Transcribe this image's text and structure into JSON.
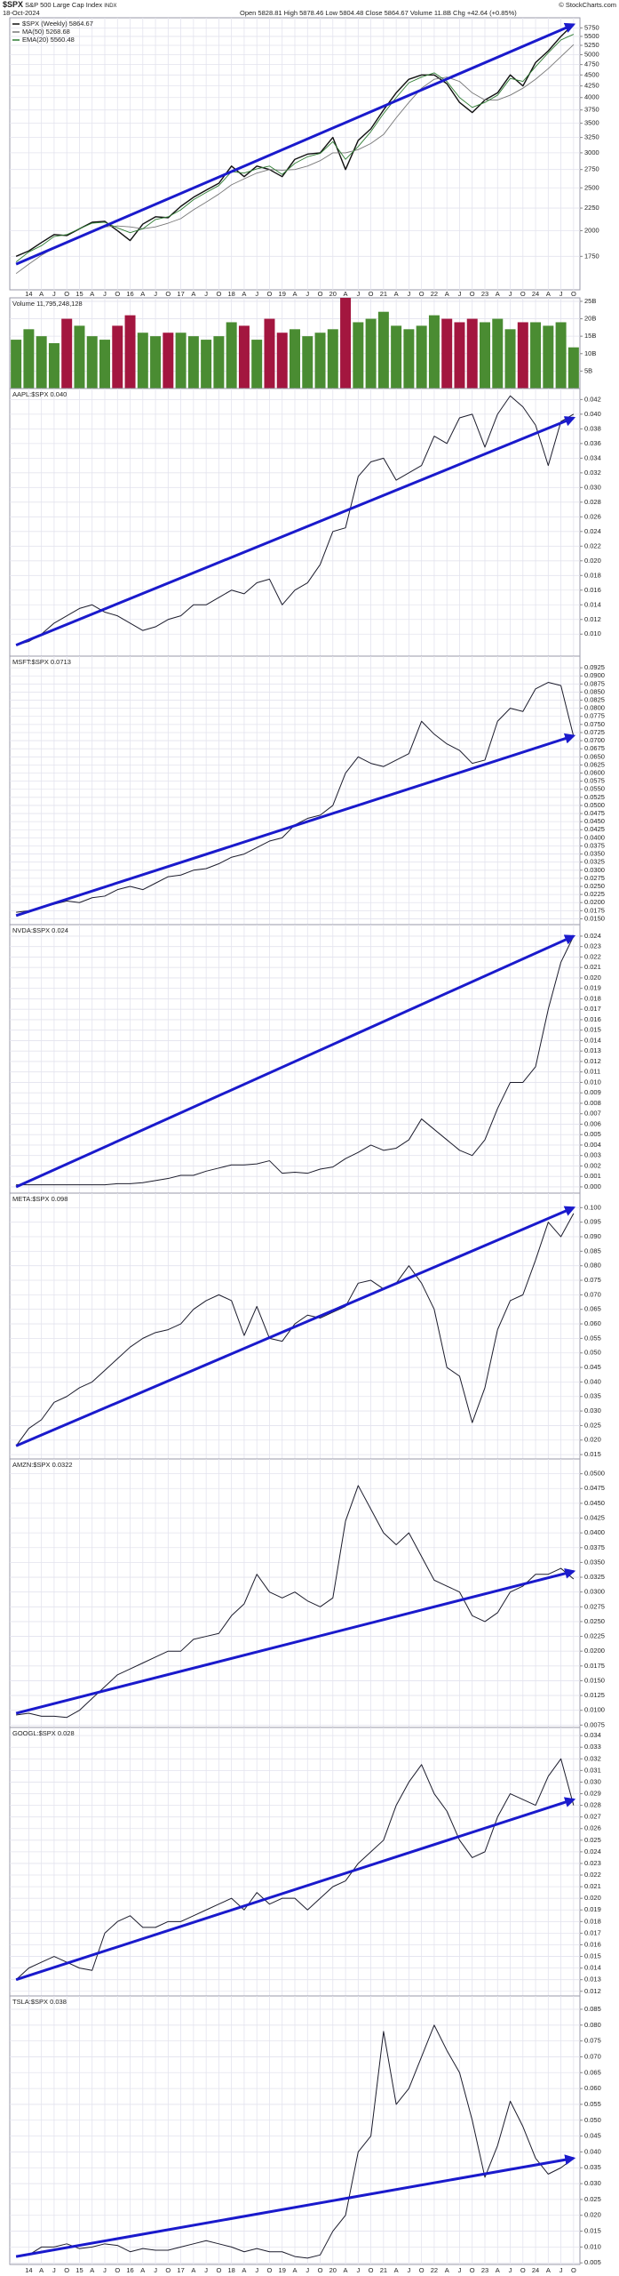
{
  "header": {
    "symbol": "$SPX",
    "name": "S&P 500 Large Cap Index",
    "exchange": "INDX",
    "date": "18-Oct-2024",
    "quote": "Open 5828.81 High 5878.46 Low 5804.48 Close 5864.67 Volume 11.8B Chg +42.64 (+0.85%)",
    "copyright": "© StockCharts.com"
  },
  "chart_data": [
    {
      "type": "line",
      "log": true,
      "grid": true,
      "categories": [
        null,
        "14",
        "A",
        "J",
        "O",
        "15",
        "A",
        "J",
        "O",
        "16",
        "A",
        "J",
        "O",
        "17",
        "A",
        "J",
        "O",
        "18",
        "A",
        "J",
        "O",
        "19",
        "A",
        "J",
        "O",
        "20",
        "A",
        "J",
        "O",
        "21",
        "A",
        "J",
        "O",
        "22",
        "A",
        "J",
        "O",
        "23",
        "A",
        "J",
        "O",
        "24",
        "A",
        "J",
        "O"
      ],
      "series": [
        {
          "name": "$SPX (Weekly) 5864.67",
          "color": "#111111",
          "width": 1.4,
          "values": [
            1750,
            1800,
            1880,
            1960,
            1950,
            2020,
            2090,
            2100,
            2000,
            1900,
            2070,
            2150,
            2140,
            2270,
            2380,
            2470,
            2560,
            2800,
            2650,
            2800,
            2750,
            2650,
            2900,
            2980,
            3000,
            3250,
            2750,
            3200,
            3400,
            3750,
            4100,
            4400,
            4500,
            4500,
            4300,
            3900,
            3700,
            3950,
            4100,
            4500,
            4250,
            4800,
            5100,
            5500,
            5864.67
          ]
        },
        {
          "name": "MA(50) 5268.68",
          "color": "#777777",
          "width": 0.9,
          "values": [
            1600,
            1680,
            1760,
            1830,
            1880,
            1940,
            1990,
            2040,
            2050,
            2040,
            2020,
            2040,
            2080,
            2130,
            2230,
            2320,
            2420,
            2540,
            2620,
            2700,
            2750,
            2740,
            2750,
            2800,
            2880,
            3000,
            3000,
            3050,
            3150,
            3300,
            3600,
            3900,
            4200,
            4400,
            4450,
            4350,
            4100,
            3950,
            3950,
            4050,
            4200,
            4400,
            4650,
            4950,
            5268.68
          ]
        },
        {
          "name": "EMA(20) 5560.48",
          "color": "#2e7d32",
          "width": 0.9,
          "values": [
            1700,
            1790,
            1850,
            1940,
            1960,
            2020,
            2080,
            2090,
            2030,
            1980,
            2020,
            2120,
            2150,
            2230,
            2350,
            2440,
            2530,
            2720,
            2700,
            2760,
            2800,
            2680,
            2840,
            2940,
            2990,
            3180,
            2900,
            3100,
            3350,
            3680,
            4000,
            4320,
            4450,
            4550,
            4350,
            4000,
            3800,
            3900,
            4050,
            4420,
            4350,
            4700,
            5050,
            5400,
            5560.48
          ]
        }
      ],
      "ylim": [
        1470,
        6060
      ],
      "yticks": [
        1750,
        2000,
        2250,
        2500,
        2750,
        3000,
        3250,
        3500,
        3750,
        4000,
        4250,
        4500,
        4750,
        5000,
        5250,
        5500,
        5750
      ],
      "trendline": {
        "start": 1680,
        "end": 5850,
        "color": "#1a1acc"
      }
    },
    {
      "type": "bar",
      "grid": true,
      "up_color": "#4a8c32",
      "down_color": "#a3163f",
      "series": [
        {
          "name": "Volume 11,795,248,128",
          "values": [
            14,
            17,
            15,
            13,
            20,
            18,
            15,
            14,
            18,
            21,
            16,
            15,
            16,
            16,
            15,
            14,
            15,
            19,
            18,
            14,
            20,
            16,
            17,
            15,
            16,
            17,
            26,
            19,
            20,
            22,
            18,
            17,
            18,
            21,
            20,
            19,
            20,
            19,
            20,
            17,
            19,
            19,
            18,
            19,
            11.8
          ]
        }
      ],
      "ylim": [
        0,
        26
      ],
      "yticks": [
        {
          "value": 5,
          "label": "5B"
        },
        {
          "value": 10,
          "label": "10B"
        },
        {
          "value": 15,
          "label": "15B"
        },
        {
          "value": 20,
          "label": "20B"
        },
        {
          "value": 25,
          "label": "25B"
        }
      ]
    },
    {
      "type": "line",
      "grid": true,
      "series": [
        {
          "name": "AAPL:$SPX 0.040",
          "color": "#1c1c2c",
          "width": 1,
          "values": [
            0.0085,
            0.009,
            0.01,
            0.0115,
            0.0125,
            0.0135,
            0.014,
            0.013,
            0.0125,
            0.0115,
            0.0105,
            0.011,
            0.012,
            0.0125,
            0.014,
            0.014,
            0.015,
            0.016,
            0.0155,
            0.017,
            0.0175,
            0.014,
            0.016,
            0.017,
            0.0195,
            0.024,
            0.0245,
            0.0315,
            0.0335,
            0.034,
            0.031,
            0.032,
            0.033,
            0.037,
            0.036,
            0.0395,
            0.04,
            0.0355,
            0.04,
            0.0425,
            0.041,
            0.0385,
            0.033,
            0.039,
            0.04
          ]
        }
      ],
      "ylim": [
        0.007,
        0.0435
      ],
      "yticks": [
        {
          "value": 0.01,
          "label": "0.010"
        },
        0.012,
        0.014,
        0.016,
        0.018,
        {
          "value": 0.02,
          "label": "0.020"
        },
        0.022,
        0.024,
        0.026,
        0.028,
        {
          "value": 0.03,
          "label": "0.030"
        },
        0.032,
        0.034,
        0.036,
        0.038,
        {
          "value": 0.04,
          "label": "0.040"
        },
        0.042
      ],
      "trendline": {
        "start": 0.0085,
        "end": 0.0395,
        "color": "#1a1acc"
      }
    },
    {
      "type": "line",
      "grid": true,
      "series": [
        {
          "name": "MSFT:$SPX 0.0713",
          "color": "#1c1c2c",
          "width": 1,
          "values": [
            0.017,
            0.0175,
            0.0185,
            0.0195,
            0.0205,
            0.02,
            0.0215,
            0.022,
            0.024,
            0.025,
            0.024,
            0.026,
            0.028,
            0.0285,
            0.03,
            0.0305,
            0.032,
            0.034,
            0.035,
            0.037,
            0.039,
            0.04,
            0.044,
            0.046,
            0.047,
            0.05,
            0.06,
            0.065,
            0.063,
            0.062,
            0.064,
            0.066,
            0.076,
            0.072,
            0.069,
            0.067,
            0.063,
            0.064,
            0.076,
            0.08,
            0.079,
            0.086,
            0.088,
            0.087,
            0.0713
          ]
        }
      ],
      "ylim": [
        0.0132,
        0.0961
      ],
      "yticks": [
        {
          "value": 0.015,
          "label": "0.0150"
        },
        0.0175,
        {
          "value": 0.02,
          "label": "0.0200"
        },
        0.0225,
        {
          "value": 0.025,
          "label": "0.0250"
        },
        0.0275,
        {
          "value": 0.03,
          "label": "0.0300"
        },
        0.0325,
        {
          "value": 0.035,
          "label": "0.0350"
        },
        0.0375,
        {
          "value": 0.04,
          "label": "0.0400"
        },
        0.0425,
        {
          "value": 0.045,
          "label": "0.0450"
        },
        0.0475,
        {
          "value": 0.05,
          "label": "0.0500"
        },
        0.0525,
        {
          "value": 0.055,
          "label": "0.0550"
        },
        0.0575,
        {
          "value": 0.06,
          "label": "0.0600"
        },
        0.0625,
        {
          "value": 0.065,
          "label": "0.0650"
        },
        0.0675,
        {
          "value": 0.07,
          "label": "0.0700"
        },
        0.0725,
        {
          "value": 0.075,
          "label": "0.0750"
        },
        0.0775,
        {
          "value": 0.08,
          "label": "0.0800"
        },
        0.0825,
        {
          "value": 0.085,
          "label": "0.0850"
        },
        0.0875,
        {
          "value": 0.09,
          "label": "0.0900"
        },
        0.0925
      ],
      "trendline": {
        "start": 0.016,
        "end": 0.0715,
        "color": "#1a1acc"
      }
    },
    {
      "type": "line",
      "grid": true,
      "series": [
        {
          "name": "NVDA:$SPX 0.024",
          "color": "#1c1c2c",
          "width": 1,
          "values": [
            0.0002,
            0.0002,
            0.0002,
            0.0002,
            0.0002,
            0.0002,
            0.0002,
            0.0002,
            0.0003,
            0.0003,
            0.0004,
            0.0006,
            0.0008,
            0.0011,
            0.0011,
            0.0015,
            0.0018,
            0.0021,
            0.0021,
            0.0022,
            0.0025,
            0.0013,
            0.0014,
            0.0013,
            0.0017,
            0.0019,
            0.0027,
            0.0033,
            0.004,
            0.0035,
            0.0037,
            0.0045,
            0.0065,
            0.0055,
            0.0045,
            0.0035,
            0.003,
            0.0045,
            0.0075,
            0.01,
            0.01,
            0.0115,
            0.017,
            0.0215,
            0.024
          ]
        }
      ],
      "ylim": [
        -0.0006,
        0.0251
      ],
      "yticks": [
        {
          "value": 0,
          "label": "0.000"
        },
        0.001,
        0.002,
        0.003,
        0.004,
        0.005,
        0.006,
        0.007,
        0.008,
        0.009,
        {
          "value": 0.01,
          "label": "0.010"
        },
        0.011,
        0.012,
        0.013,
        0.014,
        0.015,
        0.016,
        0.017,
        0.018,
        0.019,
        {
          "value": 0.02,
          "label": "0.020"
        },
        0.021,
        0.022,
        0.023,
        0.024
      ],
      "trendline": {
        "start": 0,
        "end": 0.024,
        "color": "#1a1acc"
      }
    },
    {
      "type": "line",
      "grid": true,
      "series": [
        {
          "name": "META:$SPX 0.098",
          "color": "#1c1c2c",
          "width": 1,
          "values": [
            0.018,
            0.024,
            0.027,
            0.033,
            0.035,
            0.038,
            0.04,
            0.044,
            0.048,
            0.052,
            0.055,
            0.057,
            0.058,
            0.06,
            0.065,
            0.068,
            0.07,
            0.068,
            0.056,
            0.066,
            0.055,
            0.054,
            0.06,
            0.063,
            0.062,
            0.064,
            0.066,
            0.074,
            0.075,
            0.072,
            0.074,
            0.08,
            0.074,
            0.065,
            0.045,
            0.042,
            0.026,
            0.038,
            0.058,
            0.068,
            0.07,
            0.082,
            0.095,
            0.09,
            0.098
          ]
        }
      ],
      "ylim": [
        0.0135,
        0.105
      ],
      "yticks": [
        0.015,
        {
          "value": 0.02,
          "label": "0.020"
        },
        0.025,
        {
          "value": 0.03,
          "label": "0.030"
        },
        0.035,
        {
          "value": 0.04,
          "label": "0.040"
        },
        0.045,
        {
          "value": 0.05,
          "label": "0.050"
        },
        0.055,
        {
          "value": 0.06,
          "label": "0.060"
        },
        0.065,
        {
          "value": 0.07,
          "label": "0.070"
        },
        0.075,
        {
          "value": 0.08,
          "label": "0.080"
        },
        0.085,
        {
          "value": 0.09,
          "label": "0.090"
        },
        0.095,
        {
          "value": 0.1,
          "label": "0.100"
        }
      ],
      "trendline": {
        "start": 0.018,
        "end": 0.1,
        "color": "#1a1acc"
      }
    },
    {
      "type": "line",
      "grid": true,
      "series": [
        {
          "name": "AMZN:$SPX 0.0322",
          "color": "#1c1c2c",
          "width": 1,
          "values": [
            0.0092,
            0.0095,
            0.009,
            0.009,
            0.0088,
            0.01,
            0.012,
            0.014,
            0.016,
            0.017,
            0.018,
            0.019,
            0.02,
            0.02,
            0.022,
            0.0225,
            0.023,
            0.026,
            0.028,
            0.033,
            0.03,
            0.029,
            0.03,
            0.0285,
            0.0275,
            0.029,
            0.042,
            0.048,
            0.044,
            0.04,
            0.038,
            0.04,
            0.036,
            0.032,
            0.031,
            0.03,
            0.026,
            0.025,
            0.0265,
            0.03,
            0.031,
            0.033,
            0.033,
            0.034,
            0.0322
          ]
        }
      ],
      "ylim": [
        0.0071,
        0.0525
      ],
      "yticks": [
        0.0075,
        {
          "value": 0.01,
          "label": "0.0100"
        },
        0.0125,
        {
          "value": 0.015,
          "label": "0.0150"
        },
        0.0175,
        {
          "value": 0.02,
          "label": "0.0200"
        },
        0.0225,
        {
          "value": 0.025,
          "label": "0.0250"
        },
        0.0275,
        {
          "value": 0.03,
          "label": "0.0300"
        },
        0.0325,
        {
          "value": 0.035,
          "label": "0.0350"
        },
        0.0375,
        {
          "value": 0.04,
          "label": "0.0400"
        },
        0.0425,
        {
          "value": 0.045,
          "label": "0.0450"
        },
        0.0475,
        {
          "value": 0.05,
          "label": "0.0500"
        }
      ],
      "trendline": {
        "start": 0.0095,
        "end": 0.0335,
        "color": "#1a1acc"
      }
    },
    {
      "type": "line",
      "grid": true,
      "series": [
        {
          "name": "GOOGL:$SPX 0.028",
          "color": "#1c1c2c",
          "width": 1,
          "values": [
            0.013,
            0.014,
            0.0145,
            0.015,
            0.0145,
            0.014,
            0.0138,
            0.017,
            0.018,
            0.0185,
            0.0175,
            0.0175,
            0.018,
            0.018,
            0.0185,
            0.019,
            0.0195,
            0.02,
            0.019,
            0.0205,
            0.0195,
            0.02,
            0.02,
            0.019,
            0.02,
            0.021,
            0.0215,
            0.023,
            0.024,
            0.025,
            0.028,
            0.03,
            0.0315,
            0.029,
            0.0275,
            0.025,
            0.0235,
            0.024,
            0.027,
            0.029,
            0.0285,
            0.028,
            0.0305,
            0.032,
            0.028
          ]
        }
      ],
      "ylim": [
        0.0116,
        0.0347
      ],
      "yticks": [
        0.012,
        0.013,
        0.014,
        0.015,
        0.016,
        0.017,
        0.018,
        0.019,
        {
          "value": 0.02,
          "label": "0.020"
        },
        0.021,
        0.022,
        0.023,
        0.024,
        0.025,
        0.026,
        0.027,
        0.028,
        0.029,
        {
          "value": 0.03,
          "label": "0.030"
        },
        0.031,
        0.032,
        0.033,
        0.034
      ],
      "trendline": {
        "start": 0.013,
        "end": 0.0285,
        "color": "#1a1acc"
      }
    },
    {
      "type": "line",
      "grid": true,
      "series": [
        {
          "name": "TSLA:$SPX 0.038",
          "color": "#1c1c2c",
          "width": 1,
          "values": [
            0.007,
            0.0075,
            0.01,
            0.01,
            0.011,
            0.0095,
            0.01,
            0.011,
            0.0105,
            0.0085,
            0.0095,
            0.009,
            0.009,
            0.01,
            0.011,
            0.012,
            0.011,
            0.01,
            0.0085,
            0.0095,
            0.0085,
            0.0085,
            0.007,
            0.0065,
            0.0075,
            0.015,
            0.02,
            0.04,
            0.045,
            0.078,
            0.055,
            0.06,
            0.07,
            0.08,
            0.072,
            0.065,
            0.05,
            0.032,
            0.042,
            0.056,
            0.048,
            0.038,
            0.033,
            0.035,
            0.038
          ]
        }
      ],
      "ylim": [
        0.0045,
        0.0892
      ],
      "yticks": [
        0.005,
        {
          "value": 0.01,
          "label": "0.010"
        },
        0.015,
        {
          "value": 0.02,
          "label": "0.020"
        },
        0.025,
        {
          "value": 0.03,
          "label": "0.030"
        },
        0.035,
        {
          "value": 0.04,
          "label": "0.040"
        },
        0.045,
        {
          "value": 0.05,
          "label": "0.050"
        },
        0.055,
        {
          "value": 0.06,
          "label": "0.060"
        },
        0.065,
        {
          "value": 0.07,
          "label": "0.070"
        },
        0.075,
        {
          "value": 0.08,
          "label": "0.080"
        },
        0.085
      ],
      "trendline": {
        "start": 0.007,
        "end": 0.038,
        "color": "#1a1acc"
      }
    }
  ]
}
